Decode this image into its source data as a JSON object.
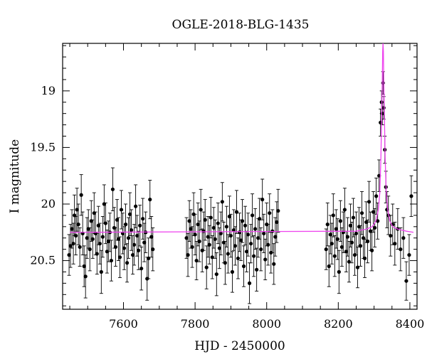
{
  "chart_data": {
    "type": "scatter",
    "title": "OGLE-2018-BLG-1435",
    "xlabel": "HJD - 2450000",
    "ylabel": "I magnitude",
    "xlim": [
      7430,
      8420
    ],
    "ylim": [
      20.93,
      18.58
    ],
    "y_inverted": true,
    "x_ticks": [
      7600,
      7800,
      8000,
      8200,
      8400
    ],
    "y_ticks": [
      19,
      19.5,
      20,
      20.5
    ],
    "grid": false,
    "colors": {
      "points": "#000000",
      "model": "#ee44ee",
      "frame": "#000000"
    },
    "model": {
      "name": "",
      "baseline_mag": 20.25,
      "peak_time": 8325,
      "peak_mag": 18.55,
      "x": [
        7450,
        8250,
        8280,
        8295,
        8305,
        8312,
        8316,
        8319,
        8321,
        8323,
        8324,
        8325,
        8326,
        8327,
        8329,
        8331,
        8334,
        8338,
        8344,
        8352,
        8365,
        8390,
        8410
      ],
      "y": [
        20.25,
        20.24,
        20.22,
        20.2,
        20.15,
        20.05,
        19.9,
        19.6,
        19.25,
        18.9,
        18.65,
        18.55,
        18.65,
        18.9,
        19.25,
        19.6,
        19.9,
        20.05,
        20.15,
        20.2,
        20.22,
        20.24,
        20.25
      ]
    },
    "series": [
      {
        "x": [
          7448,
          7452,
          7456,
          7460,
          7463,
          7467,
          7470,
          7474,
          7478,
          7482,
          7486,
          7490,
          7494,
          7498,
          7502,
          7506,
          7510,
          7514,
          7518,
          7522,
          7526,
          7530,
          7534,
          7538,
          7542,
          7546,
          7550,
          7554,
          7558,
          7562,
          7566,
          7570,
          7574,
          7578,
          7582,
          7586,
          7590,
          7594,
          7598,
          7602,
          7606,
          7610,
          7614,
          7618,
          7622,
          7626,
          7630,
          7634,
          7638,
          7642,
          7646,
          7650,
          7654,
          7658,
          7662,
          7666,
          7670,
          7674,
          7678,
          7682
        ],
        "y": [
          20.45,
          20.37,
          20.22,
          20.35,
          20.1,
          20.28,
          20.05,
          20.18,
          20.38,
          19.92,
          20.26,
          20.55,
          20.64,
          20.3,
          20.22,
          20.4,
          20.15,
          20.31,
          20.08,
          20.26,
          20.44,
          20.19,
          20.35,
          20.6,
          20.29,
          20.0,
          20.17,
          20.42,
          20.33,
          20.25,
          20.5,
          19.87,
          20.21,
          20.38,
          20.14,
          20.31,
          20.47,
          20.05,
          20.26,
          20.39,
          20.18,
          20.52,
          20.3,
          20.09,
          20.23,
          20.45,
          20.36,
          20.02,
          20.28,
          20.41,
          20.19,
          20.57,
          20.13,
          20.34,
          20.25,
          20.66,
          20.48,
          19.96,
          20.29,
          20.4
        ],
        "err": [
          0.18,
          0.19,
          0.17,
          0.18,
          0.18,
          0.17,
          0.19,
          0.18,
          0.17,
          0.18,
          0.19,
          0.18,
          0.19,
          0.18,
          0.17,
          0.19,
          0.18,
          0.17,
          0.18,
          0.19,
          0.18,
          0.17,
          0.18,
          0.19,
          0.18,
          0.17,
          0.18,
          0.19,
          0.18,
          0.17,
          0.18,
          0.19,
          0.18,
          0.17,
          0.18,
          0.19,
          0.18,
          0.17,
          0.18,
          0.19,
          0.18,
          0.17,
          0.18,
          0.19,
          0.18,
          0.17,
          0.18,
          0.19,
          0.18,
          0.17,
          0.18,
          0.19,
          0.18,
          0.17,
          0.18,
          0.19,
          0.18,
          0.17,
          0.18,
          0.19
        ]
      },
      {
        "x": [
          7776,
          7780,
          7784,
          7788,
          7792,
          7796,
          7800,
          7804,
          7808,
          7812,
          7816,
          7820,
          7824,
          7828,
          7832,
          7836,
          7840,
          7844,
          7848,
          7852,
          7856,
          7860,
          7864,
          7868,
          7872,
          7876,
          7880,
          7884,
          7888,
          7892,
          7896,
          7900,
          7904,
          7908,
          7912,
          7916,
          7920,
          7924,
          7928,
          7932,
          7936,
          7940,
          7944,
          7948,
          7952,
          7956,
          7960,
          7964,
          7968,
          7972,
          7976,
          7980,
          7984,
          7988,
          7992,
          7996,
          8000,
          8004,
          8008,
          8012,
          8016,
          8020,
          8024,
          8028,
          8032
        ],
        "y": [
          20.3,
          20.45,
          20.15,
          20.22,
          20.38,
          20.09,
          20.27,
          20.5,
          20.18,
          20.33,
          20.05,
          20.41,
          20.24,
          20.14,
          20.56,
          20.29,
          20.36,
          20.12,
          20.47,
          20.21,
          20.31,
          20.62,
          20.17,
          20.39,
          20.26,
          19.98,
          20.34,
          20.52,
          20.2,
          20.44,
          20.11,
          20.28,
          20.6,
          20.23,
          20.37,
          20.07,
          20.48,
          20.25,
          20.32,
          20.15,
          20.55,
          20.19,
          20.42,
          20.27,
          20.7,
          20.35,
          20.1,
          20.46,
          20.22,
          20.58,
          20.3,
          20.13,
          20.4,
          19.96,
          20.26,
          20.49,
          20.18,
          20.36,
          20.08,
          20.43,
          20.24,
          20.53,
          20.29,
          20.16,
          20.06
        ],
        "err": [
          0.18,
          0.19,
          0.18,
          0.17,
          0.18,
          0.19,
          0.18,
          0.17,
          0.19,
          0.18,
          0.18,
          0.19,
          0.17,
          0.18,
          0.19,
          0.18,
          0.17,
          0.18,
          0.19,
          0.18,
          0.17,
          0.19,
          0.18,
          0.18,
          0.19,
          0.17,
          0.18,
          0.19,
          0.18,
          0.17,
          0.18,
          0.19,
          0.18,
          0.18,
          0.17,
          0.19,
          0.18,
          0.17,
          0.18,
          0.19,
          0.18,
          0.17,
          0.18,
          0.19,
          0.18,
          0.17,
          0.19,
          0.18,
          0.18,
          0.19,
          0.17,
          0.18,
          0.19,
          0.18,
          0.17,
          0.18,
          0.19,
          0.18,
          0.17,
          0.18,
          0.19,
          0.18,
          0.17,
          0.18,
          0.19
        ]
      },
      {
        "x": [
          8166,
          8170,
          8174,
          8178,
          8182,
          8186,
          8190,
          8194,
          8198,
          8202,
          8206,
          8210,
          8214,
          8218,
          8222,
          8226,
          8230,
          8234,
          8238,
          8242,
          8246,
          8250,
          8254,
          8258,
          8262,
          8266,
          8270,
          8274,
          8278,
          8282,
          8286,
          8290,
          8294,
          8298,
          8302,
          8306,
          8310,
          8314,
          8318,
          8321,
          8323,
          8325,
          8327,
          8330,
          8333,
          8336,
          8340,
          8346,
          8352,
          8358,
          8366,
          8374,
          8382,
          8390,
          8398,
          8404
        ],
        "y": [
          20.4,
          20.18,
          20.55,
          20.27,
          20.35,
          20.1,
          20.46,
          20.22,
          20.31,
          20.6,
          20.15,
          20.38,
          20.25,
          20.05,
          20.42,
          20.29,
          20.51,
          20.19,
          20.34,
          20.12,
          20.45,
          20.26,
          20.56,
          20.2,
          20.37,
          20.08,
          20.3,
          20.48,
          20.16,
          20.33,
          19.98,
          20.24,
          20.41,
          20.07,
          20.21,
          19.93,
          20.15,
          19.75,
          19.28,
          19.1,
          19.2,
          18.93,
          19.15,
          19.52,
          19.85,
          20.05,
          20.1,
          20.28,
          20.18,
          20.35,
          20.22,
          20.4,
          20.3,
          20.68,
          20.45,
          19.93
        ],
        "err": [
          0.18,
          0.19,
          0.18,
          0.17,
          0.18,
          0.19,
          0.18,
          0.17,
          0.18,
          0.19,
          0.18,
          0.17,
          0.18,
          0.19,
          0.18,
          0.17,
          0.18,
          0.19,
          0.18,
          0.17,
          0.18,
          0.19,
          0.18,
          0.17,
          0.18,
          0.19,
          0.18,
          0.17,
          0.18,
          0.19,
          0.18,
          0.17,
          0.18,
          0.18,
          0.17,
          0.16,
          0.16,
          0.14,
          0.12,
          0.1,
          0.1,
          0.1,
          0.1,
          0.12,
          0.14,
          0.16,
          0.17,
          0.18,
          0.18,
          0.19,
          0.18,
          0.19,
          0.18,
          0.17,
          0.18,
          0.18
        ]
      }
    ]
  }
}
